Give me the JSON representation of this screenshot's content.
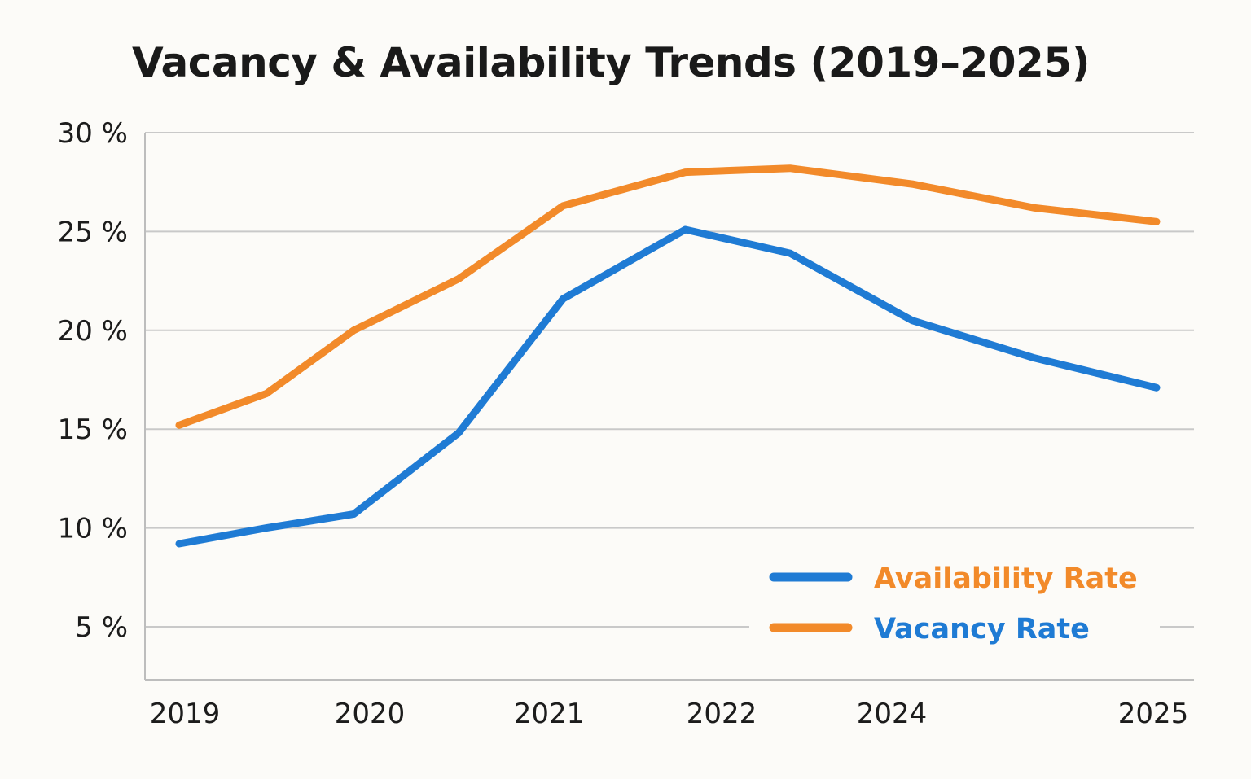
{
  "chart_data": {
    "type": "line",
    "title": "Vacancy & Availability Trends (2019–2025)",
    "xlabel": "",
    "ylabel": "",
    "ylim": [
      5,
      30
    ],
    "y_ticks": [
      "30 %",
      "25 %",
      "20 %",
      "15 %",
      "10 %",
      "5 %"
    ],
    "y_tick_values": [
      30,
      25,
      20,
      15,
      10,
      5
    ],
    "x_tick_labels": [
      "2019",
      "2020",
      "2021",
      "2022",
      "2024",
      "2025"
    ],
    "grid": "horizontal",
    "legend_position": "bottom-right",
    "series": [
      {
        "name": "Availability Rate",
        "color": "#1f7bd4",
        "x": [
          2019,
          2019.5,
          2020,
          2020.6,
          2021.2,
          2021.9,
          2022.5,
          2023.2,
          2023.9,
          2024.6
        ],
        "values": [
          9.2,
          10.0,
          10.7,
          14.8,
          21.6,
          25.1,
          23.9,
          20.5,
          18.6,
          17.1
        ]
      },
      {
        "name": "Vacancy Rate",
        "color": "#f28a2a",
        "x": [
          2019,
          2019.5,
          2020,
          2020.6,
          2021.2,
          2021.9,
          2022.5,
          2023.2,
          2023.9,
          2024.6
        ],
        "values": [
          15.2,
          16.8,
          20.0,
          22.6,
          26.3,
          28.0,
          28.2,
          27.4,
          26.2,
          25.5
        ]
      }
    ],
    "legend": [
      {
        "label": "Availability Rate",
        "swatch_color": "#1f7bd4",
        "text_color": "#f28a2a"
      },
      {
        "label": "Vacancy Rate",
        "swatch_color": "#f28a2a",
        "text_color": "#1f7bd4"
      }
    ]
  }
}
